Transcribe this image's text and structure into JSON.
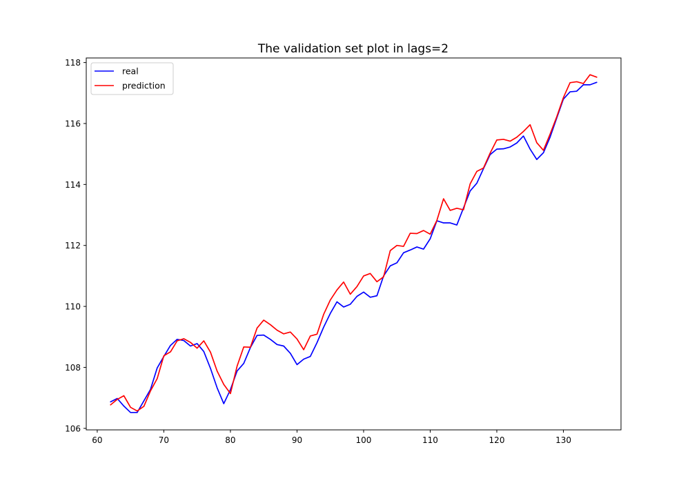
{
  "chart_data": {
    "type": "line",
    "title": "The validation set plot in lags=2",
    "xlabel": "",
    "ylabel": "",
    "xlim": [
      58.35,
      138.65
    ],
    "ylim": [
      105.95,
      118.15
    ],
    "xticks": [
      60,
      70,
      80,
      90,
      100,
      110,
      120,
      130
    ],
    "yticks": [
      106,
      108,
      110,
      112,
      114,
      116,
      118
    ],
    "grid": false,
    "legend_position": "upper-left",
    "x": [
      62,
      63,
      64,
      65,
      66,
      67,
      68,
      69,
      70,
      71,
      72,
      73,
      74,
      75,
      76,
      77,
      78,
      79,
      80,
      81,
      82,
      83,
      84,
      85,
      86,
      87,
      88,
      89,
      90,
      91,
      92,
      93,
      94,
      95,
      96,
      97,
      98,
      99,
      100,
      101,
      102,
      103,
      104,
      105,
      106,
      107,
      108,
      109,
      110,
      111,
      112,
      113,
      114,
      115,
      116,
      117,
      118,
      119,
      120,
      121,
      122,
      123,
      124,
      125,
      126,
      127,
      128,
      129,
      130,
      131,
      132,
      133,
      134,
      135
    ],
    "series": [
      {
        "name": "real",
        "color": "#0000ff",
        "values": [
          106.87,
          106.98,
          106.73,
          106.52,
          106.52,
          106.9,
          107.28,
          107.98,
          108.36,
          108.72,
          108.92,
          108.88,
          108.7,
          108.78,
          108.52,
          107.97,
          107.33,
          106.81,
          107.27,
          107.88,
          108.13,
          108.65,
          109.05,
          109.06,
          108.92,
          108.75,
          108.7,
          108.46,
          108.09,
          108.27,
          108.36,
          108.81,
          109.32,
          109.77,
          110.15,
          109.98,
          110.07,
          110.33,
          110.47,
          110.3,
          110.35,
          111.0,
          111.33,
          111.43,
          111.76,
          111.85,
          111.95,
          111.88,
          112.22,
          112.81,
          112.74,
          112.74,
          112.67,
          113.23,
          113.79,
          114.04,
          114.52,
          114.98,
          115.16,
          115.17,
          115.23,
          115.36,
          115.59,
          115.16,
          114.82,
          115.04,
          115.55,
          116.18,
          116.8,
          117.04,
          117.06,
          117.27,
          117.27,
          117.35
        ]
      },
      {
        "name": "prediction",
        "color": "#ff0000",
        "values": [
          106.77,
          106.95,
          107.07,
          106.69,
          106.57,
          106.72,
          107.23,
          107.63,
          108.38,
          108.51,
          108.87,
          108.94,
          108.82,
          108.63,
          108.87,
          108.5,
          107.88,
          107.44,
          107.14,
          108.04,
          108.67,
          108.66,
          109.29,
          109.55,
          109.4,
          109.22,
          109.1,
          109.16,
          108.93,
          108.58,
          109.03,
          109.09,
          109.74,
          110.21,
          110.54,
          110.8,
          110.4,
          110.65,
          111.0,
          111.08,
          110.81,
          110.97,
          111.83,
          112.0,
          111.97,
          112.4,
          112.39,
          112.49,
          112.37,
          112.82,
          113.53,
          113.15,
          113.22,
          113.17,
          114.02,
          114.43,
          114.54,
          115.03,
          115.46,
          115.48,
          115.42,
          115.55,
          115.74,
          115.96,
          115.37,
          115.12,
          115.65,
          116.22,
          116.85,
          117.34,
          117.37,
          117.31,
          117.6,
          117.52
        ]
      }
    ]
  }
}
